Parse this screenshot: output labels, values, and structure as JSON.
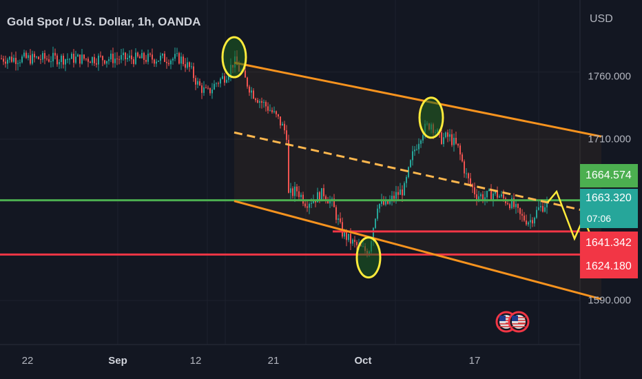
{
  "header": {
    "symbol_title": "Gold Spot / U.S. Dollar, 1h, OANDA",
    "currency": "USD"
  },
  "price_axis": {
    "ticks": [
      "1760.000",
      "1710.000",
      "1590.000"
    ]
  },
  "time_axis": {
    "ticks": [
      {
        "label": "22",
        "bold": false
      },
      {
        "label": "Sep",
        "bold": true
      },
      {
        "label": "12",
        "bold": false
      },
      {
        "label": "21",
        "bold": false
      },
      {
        "label": "Oct",
        "bold": true
      },
      {
        "label": "17",
        "bold": false
      }
    ]
  },
  "price_labels": {
    "green_level": {
      "value": "1664.574",
      "color": "#4caf50"
    },
    "last_price": {
      "value": "1663.320",
      "countdown": "07:06",
      "color": "#26a69a"
    },
    "red_level_1": {
      "value": "1641.342",
      "color": "#f23645"
    },
    "red_level_2": {
      "value": "1624.180",
      "color": "#f23645"
    }
  },
  "colors": {
    "background": "#131722",
    "up_candle": "#26a69a",
    "down_candle": "#ef5350",
    "channel": "#f7931e",
    "midline": "#ffb74d",
    "highlight": "#ffeb3b",
    "support_green": "#4caf50",
    "resistance_red": "#f23645"
  },
  "chart_data": {
    "type": "candlestick",
    "instrument": "XAU/USD",
    "timeframe": "1h",
    "price_range": [
      1553,
      1801
    ],
    "channel": {
      "upper": [
        [
          "Aug 25",
          1767
        ],
        [
          "Oct 24",
          1712
        ]
      ],
      "lower": [
        [
          "Aug 25",
          1664
        ],
        [
          "Oct 24",
          1591
        ]
      ],
      "midline": [
        [
          "Aug 25",
          1715
        ],
        [
          "Oct 24",
          1654
        ]
      ]
    },
    "horizontal_levels": [
      {
        "price": 1664.574,
        "color": "green"
      },
      {
        "price": 1641.342,
        "color": "red"
      },
      {
        "price": 1624.18,
        "color": "red"
      }
    ],
    "projection_path": [
      [
        "Oct 18",
        1663
      ],
      [
        "Oct 19",
        1671
      ],
      [
        "Oct 21",
        1636
      ],
      [
        "Oct 22",
        1651
      ],
      [
        "Oct 24",
        1620
      ]
    ],
    "highlighted_swings": [
      {
        "date": "Aug 25",
        "price": 1771,
        "kind": "high"
      },
      {
        "date": "Oct 5",
        "price": 1726,
        "kind": "high"
      },
      {
        "date": "Sep 28",
        "price": 1622,
        "kind": "low"
      }
    ],
    "close_path": [
      [
        "Aug 19",
        1770
      ],
      [
        "Aug 20",
        1763
      ],
      [
        "Aug 21",
        1750
      ],
      [
        "Aug 22",
        1744
      ],
      [
        "Aug 23",
        1752
      ],
      [
        "Aug 24",
        1757
      ],
      [
        "Aug 25",
        1768
      ],
      [
        "Aug 26",
        1757
      ],
      [
        "Aug 27",
        1745
      ],
      [
        "Aug 28",
        1738
      ],
      [
        "Aug 29",
        1732
      ],
      [
        "Aug 30",
        1724
      ],
      [
        "Aug 31",
        1712
      ],
      [
        "Sep 1",
        1703
      ],
      [
        "Sep 2",
        1712
      ],
      [
        "Sep 3",
        1718
      ],
      [
        "Sep 4",
        1725
      ],
      [
        "Sep 5",
        1712
      ],
      [
        "Sep 6",
        1702
      ],
      [
        "Sep 7",
        1714
      ],
      [
        "Sep 8",
        1722
      ],
      [
        "Sep 9",
        1714
      ],
      [
        "Sep 10",
        1729
      ],
      [
        "Sep 11",
        1726
      ],
      [
        "Sep 12",
        1718
      ],
      [
        "Sep 13",
        1732
      ],
      [
        "Sep 14",
        1722
      ],
      [
        "Sep 15",
        1708
      ],
      [
        "Sep 16",
        1690
      ],
      [
        "Sep 17",
        1677
      ],
      [
        "Sep 18",
        1660
      ],
      [
        "Sep 19",
        1668
      ],
      [
        "Sep 20",
        1672
      ],
      [
        "Sep 21",
        1663
      ],
      [
        "Sep 22",
        1666
      ],
      [
        "Sep 23",
        1670
      ],
      [
        "Sep 24",
        1661
      ],
      [
        "Sep 25",
        1641
      ],
      [
        "Sep 26",
        1634
      ],
      [
        "Sep 27",
        1629
      ],
      [
        "Sep 28",
        1626
      ],
      [
        "Sep 29",
        1662
      ],
      [
        "Sep 30",
        1661
      ],
      [
        "Oct 1",
        1668
      ],
      [
        "Oct 2",
        1673
      ],
      [
        "Oct 3",
        1700
      ],
      [
        "Oct 4",
        1716
      ],
      [
        "Oct 5",
        1722
      ],
      [
        "Oct 6",
        1710
      ],
      [
        "Oct 7",
        1712
      ],
      [
        "Oct 8",
        1703
      ],
      [
        "Oct 9",
        1681
      ],
      [
        "Oct 10",
        1669
      ],
      [
        "Oct 11",
        1667
      ],
      [
        "Oct 12",
        1670
      ],
      [
        "Oct 13",
        1666
      ],
      [
        "Oct 14",
        1662
      ],
      [
        "Oct 15",
        1652
      ],
      [
        "Oct 16",
        1649
      ],
      [
        "Oct 17",
        1658
      ],
      [
        "Oct 18",
        1663
      ]
    ]
  },
  "events": {
    "flag_icon": "us-flag-icon",
    "count": 2
  }
}
